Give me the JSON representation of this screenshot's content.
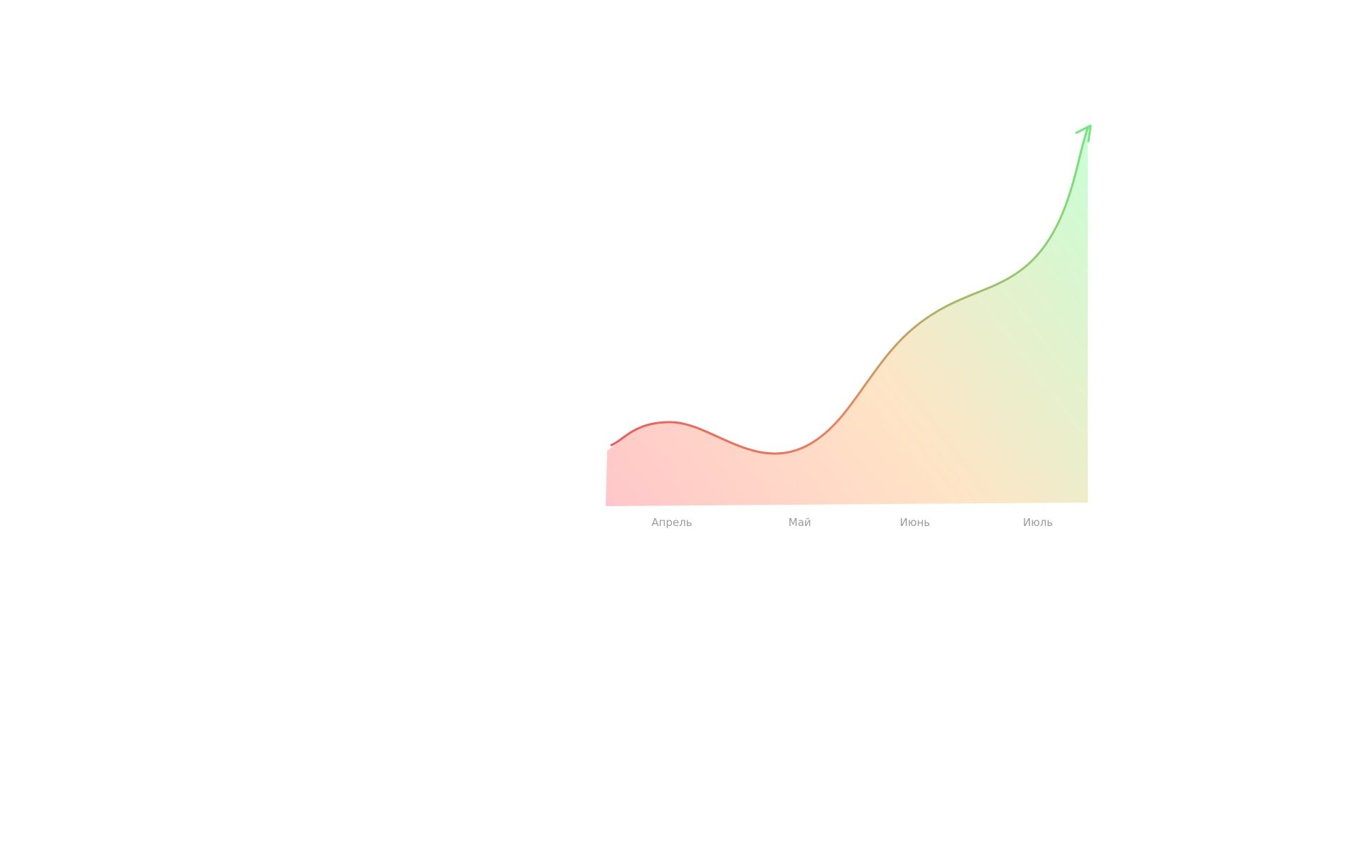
{
  "chart_data": {
    "type": "area",
    "title": "",
    "xlabel": "",
    "ylabel": "",
    "categories": [
      "Апрель",
      "Май",
      "Июнь",
      "Июль"
    ],
    "series": [
      {
        "values": [
          44,
          30,
          94,
          132
        ],
        "start_value": 32,
        "end_value": 198
      }
    ],
    "ylim": [
      0,
      205
    ],
    "grid": false,
    "legend": "none",
    "y_axis_shown": false,
    "end_marker": "arrow",
    "colors": {
      "line_start": "#ee5a5a",
      "line_end": "#6ee87a",
      "fill_start": "#ffc7c9",
      "fill_mid": "#ffe4c6",
      "fill_end": "#c8ffd4",
      "tick_label": "#9b9b9b"
    }
  }
}
